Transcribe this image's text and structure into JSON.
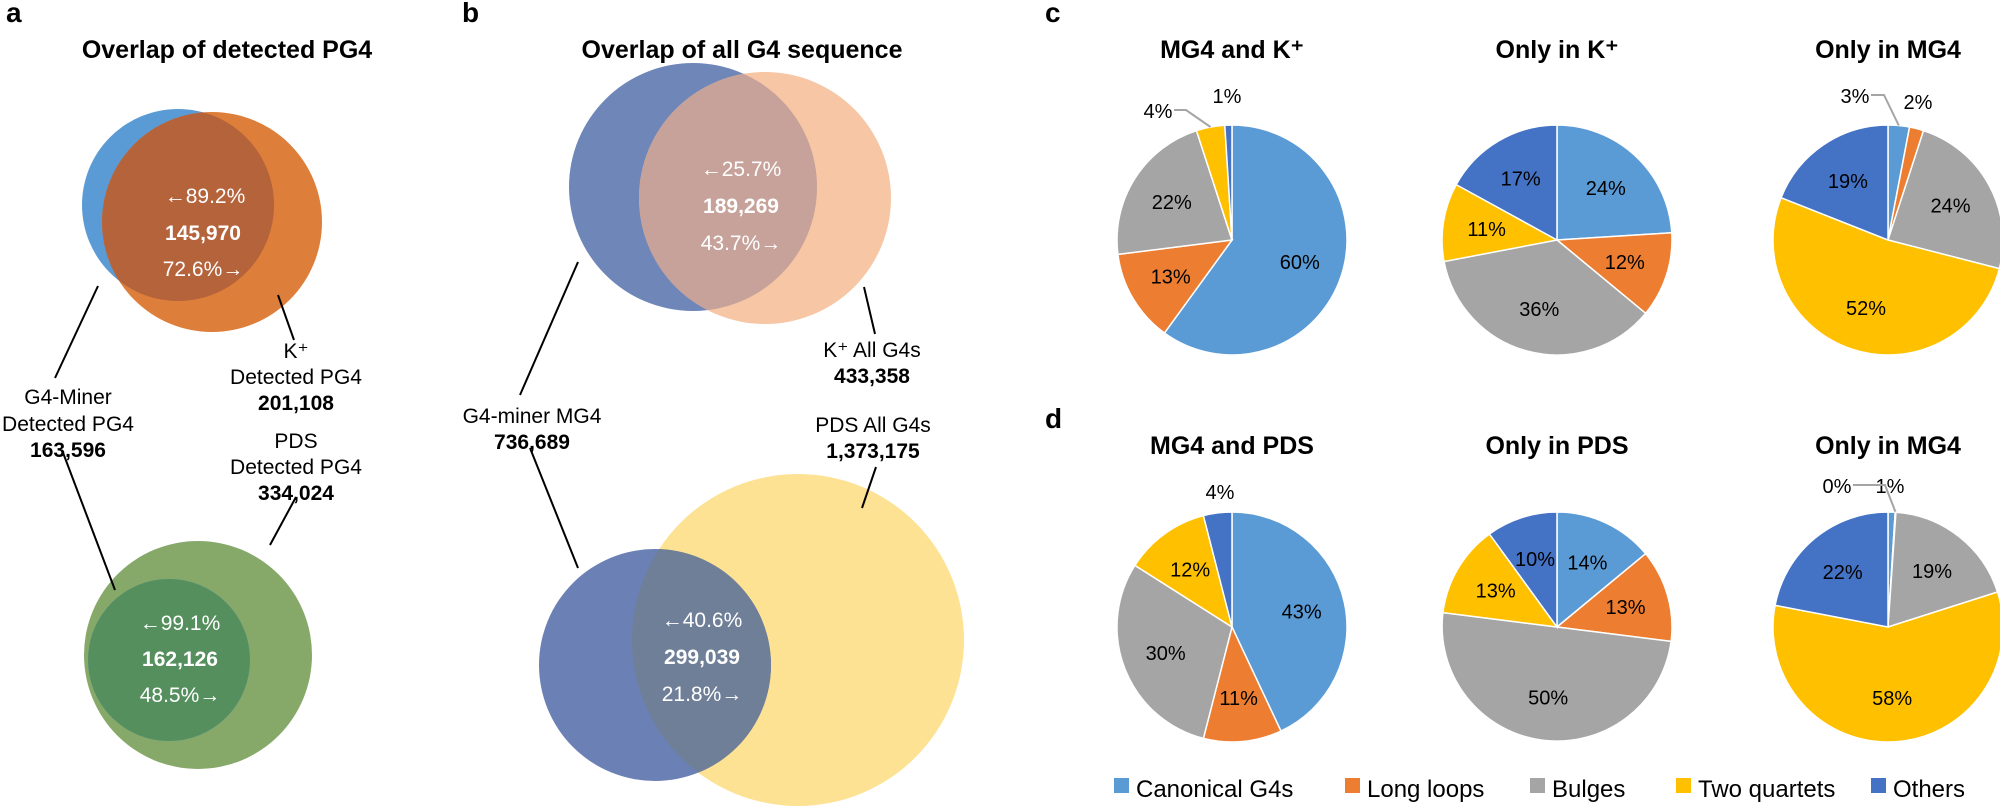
{
  "panels": {
    "a": "a",
    "b": "b",
    "c": "c",
    "d": "d"
  },
  "chart_data": [
    {
      "type": "venn",
      "panel": "a",
      "title": "Overlap of detected PG4",
      "pairs": [
        {
          "set_left": {
            "name_lines": [
              "G4-Miner",
              "Detected PG4"
            ],
            "count": "163,596",
            "color": "#5b9bd5"
          },
          "set_right": {
            "name_lines": [
              "K⁺",
              "Detected PG4"
            ],
            "count": "201,108",
            "color": "#dd7f3a"
          },
          "intersection": {
            "count": "145,970",
            "pct_left": "←89.2%",
            "pct_right": "72.6%→",
            "color": "#b5633b"
          }
        },
        {
          "set_left": {
            "name_lines": [
              "G4-Miner",
              "Detected PG4"
            ],
            "count": "163,596",
            "color": "#5b9bd5"
          },
          "set_right": {
            "name_lines": [
              "PDS",
              "Detected PG4"
            ],
            "count": "334,024",
            "color": "#86a96a"
          },
          "intersection": {
            "count": "162,126",
            "pct_left": "←99.1%",
            "pct_right": "48.5%→",
            "color": "#558f5e"
          }
        }
      ]
    },
    {
      "type": "venn",
      "panel": "b",
      "title": "Overlap of all G4 sequence",
      "pairs": [
        {
          "set_left": {
            "name_lines": [
              "G4-miner MG4"
            ],
            "count": "736,689",
            "color": "#6f86b9"
          },
          "set_right": {
            "name_lines": [
              "K⁺ All G4s"
            ],
            "count": "433,358",
            "color": "#f6c6a5"
          },
          "intersection": {
            "count": "189,269",
            "pct_left": "←25.7%",
            "pct_right": "43.7%→",
            "color": "#c6a29a"
          }
        },
        {
          "set_left": {
            "name_lines": [
              "G4-miner MG4"
            ],
            "count": "736,689",
            "color": "#6b80b5"
          },
          "set_right": {
            "name_lines": [
              "PDS All G4s"
            ],
            "count": "1,373,175",
            "color": "#fde294"
          },
          "intersection": {
            "count": "299,039",
            "pct_left": "←40.6%",
            "pct_right": "21.8%→",
            "color": "#6f7f98"
          }
        }
      ]
    },
    {
      "type": "pie",
      "panel": "c",
      "title": "MG4 and K⁺",
      "categories": [
        "Canonical G4s",
        "Long loops",
        "Bulges",
        "Two quartets",
        "Others"
      ],
      "values": [
        60,
        13,
        22,
        4,
        1
      ],
      "labels": [
        "60%",
        "13%",
        "22%",
        "4%",
        "1%"
      ]
    },
    {
      "type": "pie",
      "panel": "c",
      "title": "Only in K⁺",
      "categories": [
        "Canonical G4s",
        "Long loops",
        "Bulges",
        "Two quartets",
        "Others"
      ],
      "values": [
        24,
        12,
        36,
        11,
        17
      ],
      "labels": [
        "24%",
        "12%",
        "36%",
        "11%",
        "17%"
      ]
    },
    {
      "type": "pie",
      "panel": "c",
      "title": "Only in MG4",
      "categories": [
        "Canonical G4s",
        "Long loops",
        "Bulges",
        "Two quartets",
        "Others"
      ],
      "values": [
        3,
        2,
        24,
        52,
        19
      ],
      "labels": [
        "3%",
        "2%",
        "24%",
        "52%",
        "19%"
      ]
    },
    {
      "type": "pie",
      "panel": "d",
      "title": "MG4 and PDS",
      "categories": [
        "Canonical G4s",
        "Long loops",
        "Bulges",
        "Two quartets",
        "Others"
      ],
      "values": [
        43,
        11,
        30,
        12,
        4
      ],
      "labels": [
        "43%",
        "11%",
        "30%",
        "12%",
        "4%"
      ]
    },
    {
      "type": "pie",
      "panel": "d",
      "title": "Only in PDS",
      "categories": [
        "Canonical G4s",
        "Long loops",
        "Bulges",
        "Two quartets",
        "Others"
      ],
      "values": [
        14,
        13,
        50,
        13,
        10
      ],
      "labels": [
        "14%",
        "13%",
        "50%",
        "13%",
        "10%"
      ]
    },
    {
      "type": "pie",
      "panel": "d",
      "title": "Only in MG4",
      "categories": [
        "Canonical G4s",
        "Long loops",
        "Bulges",
        "Two quartets",
        "Others"
      ],
      "values": [
        1,
        0.1,
        19,
        58,
        22
      ],
      "labels": [
        "1%",
        "0%",
        "19%",
        "58%",
        "22%"
      ]
    }
  ],
  "legend": [
    {
      "label": "Canonical G4s",
      "color": "#5b9bd5"
    },
    {
      "label": "Long loops",
      "color": "#ed7d31"
    },
    {
      "label": "Bulges",
      "color": "#a5a5a5"
    },
    {
      "label": "Two quartets",
      "color": "#ffc000"
    },
    {
      "label": "Others",
      "color": "#4472c4"
    }
  ]
}
